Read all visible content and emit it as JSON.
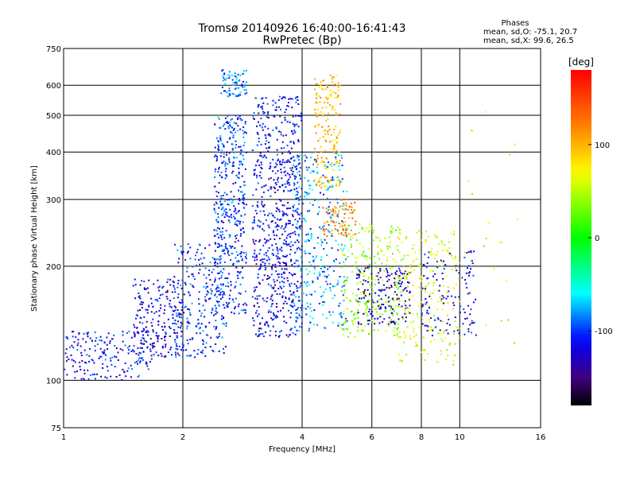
{
  "chart_data": {
    "type": "scatter",
    "title": "Tromsø 20140926 16:40:00-16:41:43",
    "subtitle": "RwPretec (Bp)",
    "xlabel": "Frequency [MHz]",
    "ylabel": "Stationary phase Virtual Height [km]",
    "x_scale": "log",
    "y_scale": "log",
    "xlim": [
      1,
      16
    ],
    "ylim": [
      75,
      750
    ],
    "x_ticks": [
      1,
      2,
      4,
      6,
      8,
      10,
      16
    ],
    "y_ticks": [
      75,
      100,
      200,
      300,
      400,
      500,
      600,
      750
    ],
    "grid": true,
    "phase_box": {
      "title": "Phases",
      "line1": "mean, sd,O: -75.1, 20.7",
      "line2": "mean, sd,X:  99.6, 26.5"
    },
    "colorbar": {
      "label": "[deg]",
      "range": [
        -180,
        180
      ],
      "ticks": [
        100,
        0,
        -100
      ],
      "colors_top_to_bottom": [
        "#ff0000",
        "#ff8000",
        "#ffff00",
        "#00ff00",
        "#00ffff",
        "#0000ff",
        "#400080",
        "#000000"
      ]
    },
    "groups": [
      {
        "freq": [
          1.0,
          1.7
        ],
        "height": [
          100,
          135
        ],
        "phase": -110,
        "count": 180
      },
      {
        "freq": [
          1.5,
          2.0
        ],
        "height": [
          115,
          185
        ],
        "phase": -120,
        "count": 220
      },
      {
        "freq": [
          1.9,
          2.6
        ],
        "height": [
          115,
          230
        ],
        "phase": -105,
        "count": 260
      },
      {
        "freq": [
          2.4,
          2.9
        ],
        "height": [
          150,
          500
        ],
        "phase": -100,
        "count": 420
      },
      {
        "freq": [
          2.5,
          2.9
        ],
        "height": [
          560,
          660
        ],
        "phase": -85,
        "count": 70
      },
      {
        "freq": [
          3.0,
          4.0
        ],
        "height": [
          130,
          560
        ],
        "phase": -115,
        "count": 700
      },
      {
        "freq": [
          3.8,
          5.2
        ],
        "height": [
          135,
          400
        ],
        "phase": -80,
        "count": 350
      },
      {
        "freq": [
          4.3,
          5.0
        ],
        "height": [
          320,
          640
        ],
        "phase": 100,
        "count": 180
      },
      {
        "freq": [
          4.5,
          5.5
        ],
        "height": [
          240,
          300
        ],
        "phase": 120,
        "count": 90
      },
      {
        "freq": [
          5.0,
          7.0
        ],
        "height": [
          130,
          260
        ],
        "phase": 40,
        "count": 260
      },
      {
        "freq": [
          5.5,
          7.5
        ],
        "height": [
          140,
          200
        ],
        "phase": -130,
        "count": 160
      },
      {
        "freq": [
          7.0,
          10.0
        ],
        "height": [
          110,
          250
        ],
        "phase": 60,
        "count": 220
      },
      {
        "freq": [
          8.0,
          11.0
        ],
        "height": [
          130,
          220
        ],
        "phase": -120,
        "count": 120
      },
      {
        "freq": [
          10.0,
          14.0
        ],
        "height": [
          120,
          540
        ],
        "phase": 80,
        "count": 20
      }
    ]
  }
}
